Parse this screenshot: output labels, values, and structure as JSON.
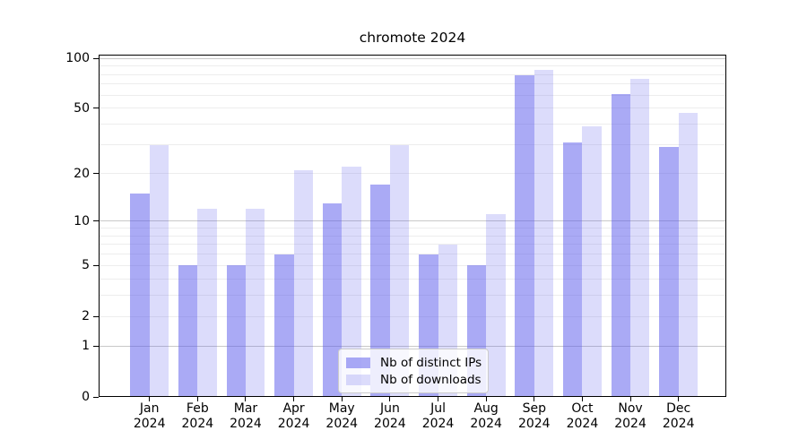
{
  "title": "chromote 2024",
  "colors": {
    "bar_base_hex": "#5a5aeb",
    "bar_dark": "rgba(90,90,235,0.515)",
    "bar_light": "rgba(90,90,235,0.212)",
    "bar_dark_rendered_hex": "#aaaaf5",
    "bar_light_rendered_hex": "#dcdcfa",
    "grid_major": "#c8c8c8",
    "grid_minor": "#ededed",
    "axis": "#000000",
    "legend_border": "#cccccc"
  },
  "chart_data": {
    "type": "bar",
    "title": "chromote 2024",
    "categories": [
      "Jan 2024",
      "Feb 2024",
      "Mar 2024",
      "Apr 2024",
      "May 2024",
      "Jun 2024",
      "Jul 2024",
      "Aug 2024",
      "Sep 2024",
      "Oct 2024",
      "Nov 2024",
      "Dec 2024"
    ],
    "series": [
      {
        "name": "Nb of distinct IPs",
        "values": [
          15,
          5,
          5,
          6,
          13,
          17,
          6,
          5,
          79,
          31,
          61,
          29
        ]
      },
      {
        "name": "Nb of downloads",
        "values": [
          30,
          12,
          12,
          21,
          22,
          30,
          7,
          11,
          85,
          39,
          75,
          47
        ]
      }
    ],
    "xlabel": "",
    "ylabel": "",
    "yscale": "log10(1+x)",
    "yticks": [
      100,
      50,
      20,
      10,
      5,
      2,
      1,
      0
    ],
    "ylim": [
      0,
      103
    ],
    "grid": true,
    "legend_position": "lower-center-inside"
  }
}
